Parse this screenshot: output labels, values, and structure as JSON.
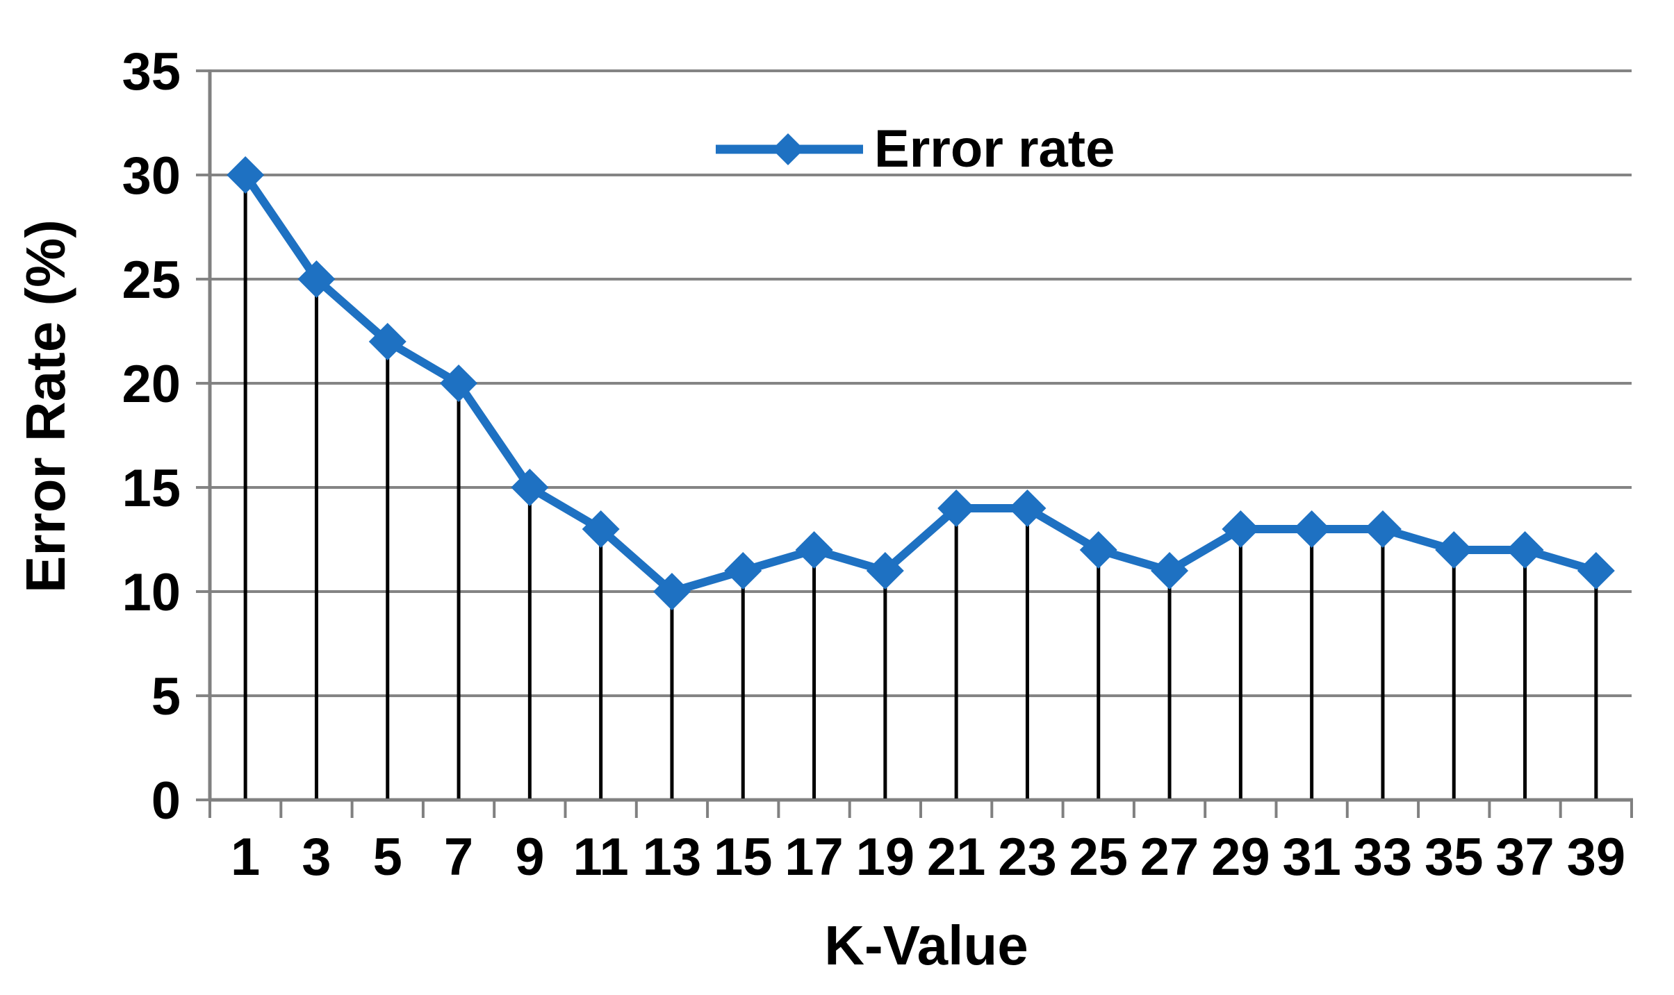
{
  "chart_data": {
    "type": "line",
    "x": [
      1,
      3,
      5,
      7,
      9,
      11,
      13,
      15,
      17,
      19,
      21,
      23,
      25,
      27,
      29,
      31,
      33,
      35,
      37,
      39
    ],
    "series": [
      {
        "name": "Error rate",
        "values": [
          30,
          25,
          22,
          20,
          15,
          13,
          10,
          11,
          12,
          11,
          14,
          14,
          12,
          11,
          13,
          13,
          13,
          12,
          12,
          11
        ]
      }
    ],
    "xlabel": "K-Value",
    "ylabel": "Error Rate (%)",
    "ylim": [
      0,
      35
    ],
    "yticks": [
      0,
      5,
      10,
      15,
      20,
      25,
      30,
      35
    ],
    "grid": "horizontal-major",
    "legend_position": "top-center",
    "marker": "diamond",
    "drop_lines": true,
    "colors": {
      "series": "#1E71C2",
      "axis": "#808080",
      "gridline": "#848484",
      "drop_line": "#000000",
      "text": "#000000",
      "background": "#FFFFFF"
    }
  }
}
